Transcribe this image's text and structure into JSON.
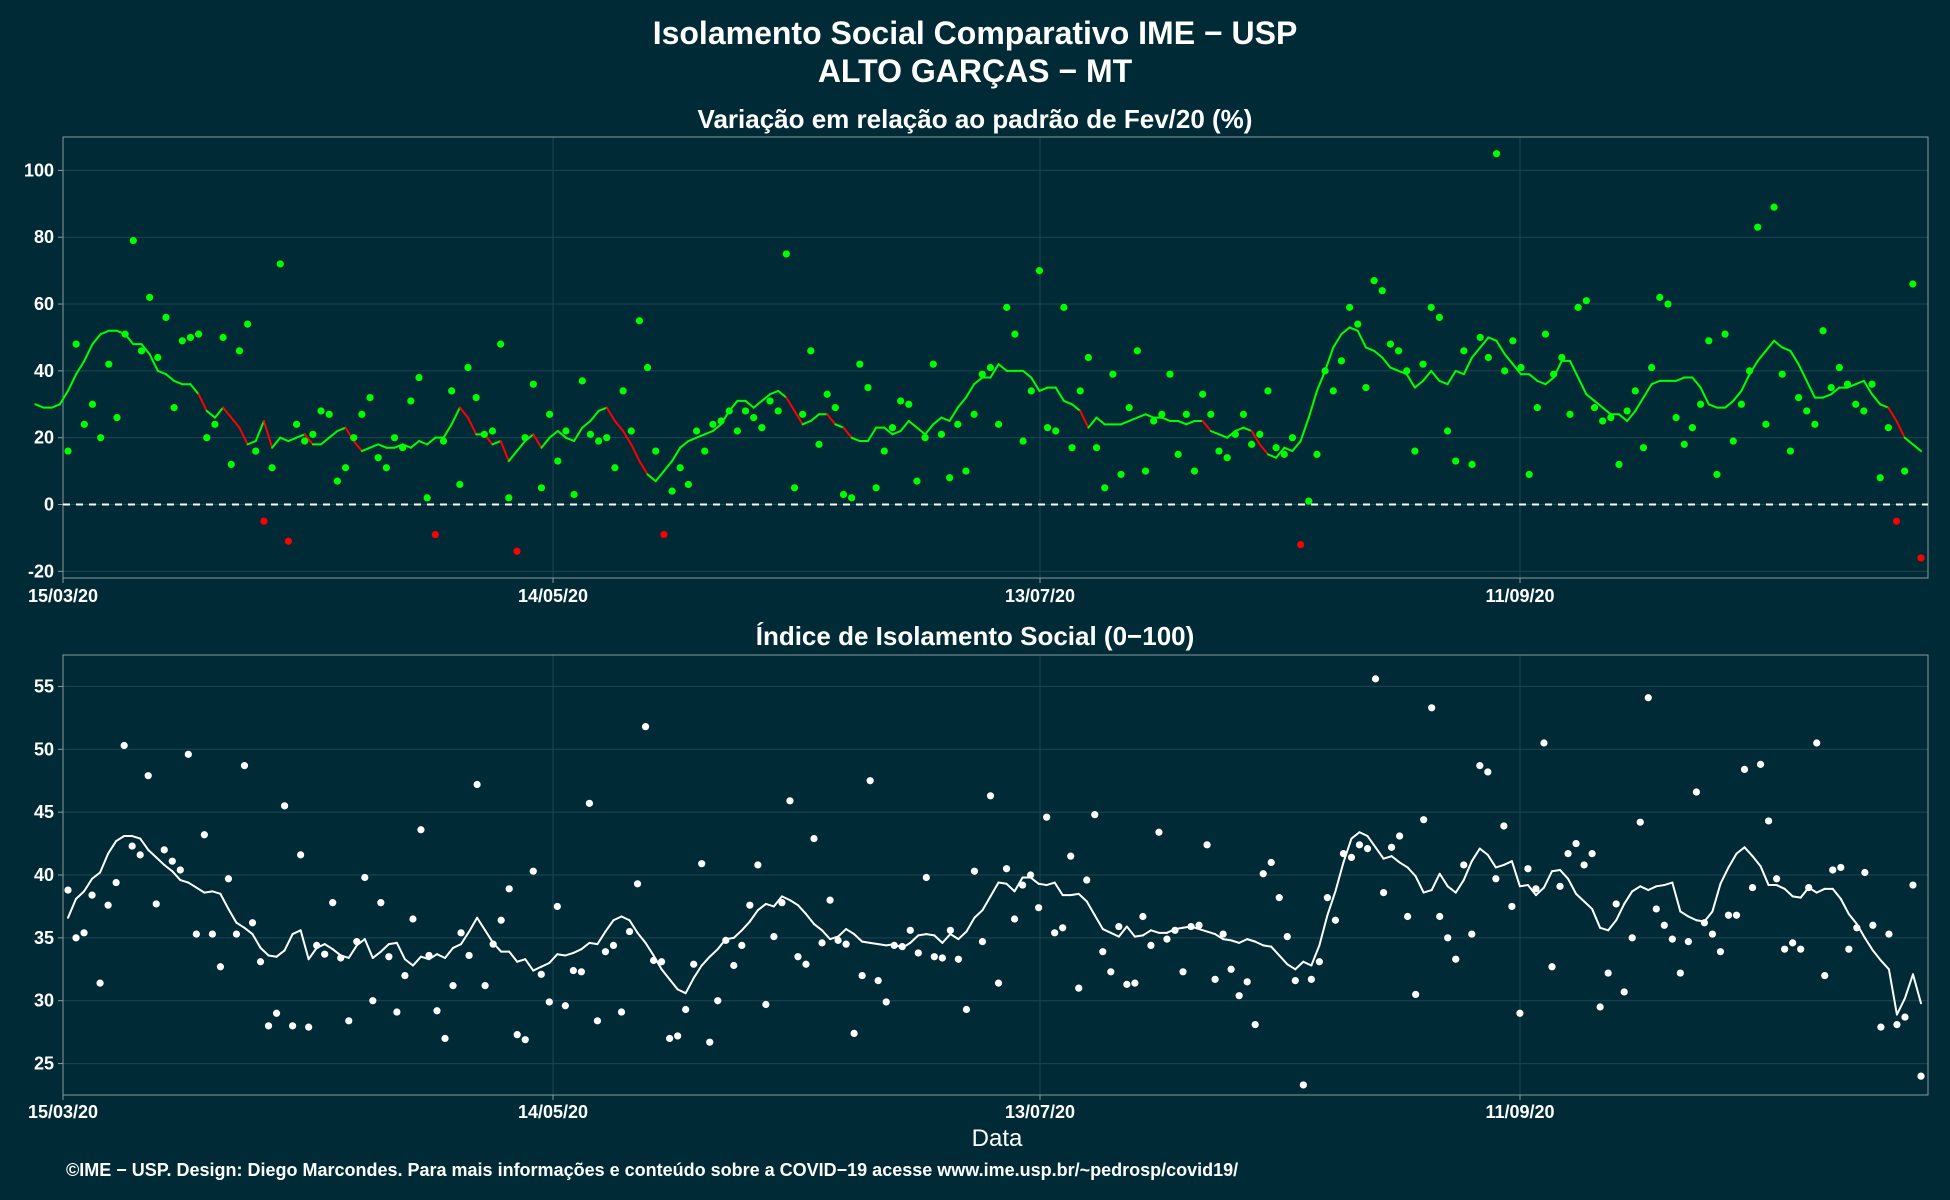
{
  "header": {
    "title_line1": "Isolamento Social Comparativo IME − USP",
    "title_line2": "ALTO GARÇAS − MT"
  },
  "footer": {
    "x_axis_label": "Data",
    "credits": "©IME − USP. Design: Diego Marcondes. Para mais informações e conteúdo sobre a COVID−19 acesse www.ime.usp.br/~pedrosp/covid19/"
  },
  "colors": {
    "background": "#002b36",
    "panel_border": "#8a9aa0",
    "grid": "#1f4552",
    "positive": "#00ff00",
    "negative": "#ff0000",
    "index": "#ffffff"
  },
  "chart_data": [
    {
      "type": "scatter",
      "title": "Variação em relação ao padrão de Fev/20 (%)",
      "xlabel": "",
      "ylabel": "",
      "x_start": "2020-03-15",
      "x_end": "2020-10-29",
      "x_ticks": [
        "15/03/20",
        "14/05/20",
        "13/07/20",
        "11/09/20"
      ],
      "ylim": [
        -22,
        110
      ],
      "y_ticks": [
        -20,
        0,
        20,
        40,
        60,
        80,
        100
      ],
      "reference_line": 0,
      "series": [
        {
          "values": [
            16,
            48,
            24,
            30,
            20,
            42,
            26,
            51,
            79,
            46,
            62,
            44,
            56,
            29,
            49,
            50,
            51,
            20,
            24,
            50,
            12,
            46,
            54,
            16,
            -5,
            11,
            72,
            -11,
            24,
            19,
            21,
            28,
            27,
            7,
            11,
            20,
            27,
            32,
            14,
            11,
            20,
            17,
            31,
            38,
            2,
            -9,
            19,
            34,
            6,
            41,
            32,
            21,
            22,
            48,
            2,
            -14,
            20,
            36,
            5,
            27,
            13,
            22,
            3,
            37,
            21,
            19,
            20,
            11,
            34,
            22,
            55,
            41,
            16,
            -9,
            4,
            11,
            6,
            22,
            16,
            24,
            25,
            28,
            22,
            28,
            26,
            23,
            31,
            28,
            75,
            5,
            27,
            46,
            18,
            33,
            29,
            3,
            2,
            42,
            35,
            5,
            16,
            23,
            31,
            30,
            7,
            20,
            42,
            21,
            8,
            24,
            10,
            27,
            39,
            41,
            24,
            59,
            51,
            19,
            34,
            70,
            23,
            22,
            59,
            17,
            34,
            44,
            17,
            5,
            39,
            9,
            29,
            46,
            10,
            25,
            27,
            39,
            15,
            27,
            10,
            33,
            27,
            16,
            14,
            21,
            27,
            18,
            21,
            34,
            17,
            15,
            20,
            -12,
            1,
            15,
            40,
            34,
            43,
            59,
            54,
            35,
            67,
            64,
            48,
            46,
            40,
            16,
            42,
            59,
            56,
            22,
            13,
            46,
            12,
            50,
            44,
            105,
            40,
            49,
            41,
            9,
            29,
            51,
            39,
            44,
            27,
            59,
            61,
            29,
            25,
            26,
            12,
            28,
            34,
            17,
            41,
            62,
            60,
            26,
            18,
            23,
            30,
            49,
            9,
            51,
            19,
            30,
            40,
            83,
            24,
            89,
            39,
            16,
            32,
            28,
            24,
            52,
            35,
            41,
            36,
            30,
            28,
            36,
            8,
            23,
            -5,
            10,
            66,
            -16
          ],
          "moving_average": [
            30,
            29,
            29,
            30,
            34,
            39,
            43,
            48,
            51,
            52,
            52,
            51,
            48,
            48,
            45,
            40,
            39,
            37,
            36,
            36,
            33,
            28,
            26,
            29,
            26,
            23,
            18,
            19,
            25,
            17,
            20,
            19,
            20,
            21,
            18,
            18,
            20,
            22,
            23,
            19,
            16,
            17,
            18,
            17,
            17,
            18,
            17,
            19,
            18,
            20,
            20,
            24,
            29,
            26,
            21,
            21,
            18,
            19,
            13,
            16,
            19,
            21,
            17,
            20,
            22,
            20,
            19,
            23,
            25,
            28,
            29,
            25,
            22,
            18,
            13,
            9,
            7,
            10,
            13,
            17,
            19,
            20,
            21,
            22,
            24,
            28,
            31,
            31,
            29,
            31,
            33,
            34,
            32,
            28,
            24,
            25,
            27,
            27,
            24,
            23,
            20,
            19,
            19,
            23,
            23,
            21,
            22,
            25,
            23,
            21,
            24,
            26,
            25,
            29,
            32,
            36,
            38,
            38,
            42,
            40,
            40,
            40,
            38,
            34,
            35,
            35,
            31,
            30,
            28,
            23,
            26,
            24,
            24,
            24,
            25,
            26,
            27,
            26,
            26,
            25,
            25,
            24,
            25,
            25,
            22,
            21,
            20,
            22,
            23,
            22,
            18,
            15,
            14,
            17,
            16,
            19,
            26,
            34,
            40,
            47,
            51,
            53,
            52,
            47,
            46,
            44,
            41,
            40,
            39,
            35,
            37,
            40,
            37,
            36,
            40,
            39,
            44,
            47,
            50,
            49,
            45,
            42,
            39,
            39,
            37,
            36,
            38,
            43,
            43,
            38,
            33,
            31,
            29,
            27,
            27,
            25,
            28,
            32,
            36,
            37,
            37,
            37,
            38,
            38,
            35,
            30,
            29,
            29,
            31,
            34,
            39,
            43,
            46,
            49,
            47,
            46,
            42,
            37,
            32,
            32,
            33,
            35,
            35,
            36,
            37,
            33,
            30,
            29,
            25,
            20,
            18,
            16
          ]
        }
      ]
    },
    {
      "type": "scatter",
      "title": "Índice de Isolamento Social (0−100)",
      "xlabel": "Data",
      "ylabel": "",
      "x_start": "2020-03-15",
      "x_end": "2020-10-29",
      "x_ticks": [
        "15/03/20",
        "14/05/20",
        "13/07/20",
        "11/09/20"
      ],
      "ylim": [
        22.5,
        57.5
      ],
      "y_ticks": [
        25,
        30,
        35,
        40,
        45,
        50,
        55
      ],
      "series": [
        {
          "values": [
            38.8,
            35,
            35.4,
            38.4,
            31.4,
            37.6,
            39.4,
            50.3,
            42.3,
            41.6,
            47.9,
            37.7,
            42,
            41.1,
            40.4,
            49.6,
            35.3,
            43.2,
            35.3,
            32.7,
            39.7,
            35.3,
            48.7,
            36.2,
            33.1,
            28,
            29,
            45.5,
            28,
            41.6,
            27.9,
            34.4,
            33.7,
            37.8,
            33.4,
            28.4,
            34.7,
            39.8,
            30,
            37.8,
            33.5,
            29.1,
            32,
            36.5,
            43.6,
            33.6,
            29.2,
            27,
            31.2,
            35.4,
            33.6,
            47.2,
            31.2,
            34.5,
            36.4,
            38.9,
            27.3,
            26.9,
            40.3,
            32.1,
            29.9,
            37.5,
            29.6,
            32.4,
            32.3,
            45.7,
            28.4,
            33.9,
            34.4,
            29.1,
            35.5,
            39.3,
            51.8,
            33.2,
            33.1,
            27,
            27.2,
            29.3,
            32.9,
            40.9,
            26.7,
            30,
            34.8,
            32.8,
            34.4,
            37.6,
            40.8,
            29.7,
            35.1,
            37.8,
            45.9,
            33.5,
            32.9,
            42.9,
            34.6,
            38,
            34.8,
            34.5,
            27.4,
            32,
            47.5,
            31.6,
            29.9,
            34.4,
            34.3,
            35.6,
            33.8,
            39.8,
            33.5,
            33.4,
            35.6,
            33.3,
            29.3,
            40.3,
            34.7,
            46.3,
            31.4,
            40.5,
            36.5,
            39.2,
            40,
            37.4,
            44.6,
            35.4,
            35.8,
            41.5,
            31,
            39.6,
            44.8,
            33.9,
            32.3,
            35.9,
            31.3,
            31.4,
            36.7,
            34.4,
            43.4,
            34.9,
            35.6,
            32.3,
            35.9,
            36,
            42.4,
            31.7,
            35.3,
            32.5,
            30.4,
            31.5,
            28.1,
            40.1,
            41,
            38.2,
            35.1,
            31.6,
            23.3,
            31.7,
            33.1,
            38.2,
            36.4,
            41.7,
            41.4,
            42.4,
            42.1,
            55.6,
            38.6,
            42.2,
            43.1,
            36.7,
            30.5,
            44.4,
            53.3,
            36.7,
            35,
            33.3,
            40.8,
            35.3,
            48.7,
            48.2,
            39.7,
            43.9,
            37.5,
            29,
            40.5,
            38.9,
            50.5,
            32.7,
            39.1,
            41.7,
            42.5,
            40.8,
            41.7,
            29.5,
            32.2,
            37.7,
            30.7,
            35,
            44.2,
            54.1,
            37.3,
            36,
            34.9,
            32.2,
            34.7,
            46.6,
            36.2,
            35.3,
            33.9,
            36.8,
            36.8,
            48.4,
            39,
            48.8,
            44.3,
            39.7,
            34.1,
            34.6,
            34.1,
            39,
            50.5,
            32,
            40.4,
            40.6,
            34.1,
            35.8,
            40.2,
            36,
            27.9,
            35.3,
            28.1,
            28.7,
            39.2,
            24
          ]
        },
        {
          "moving_average": [
            36.6,
            38.1,
            38.7,
            39.7,
            40.2,
            41.7,
            42.7,
            43.1,
            43.1,
            42.9,
            42,
            41.4,
            40.8,
            40.3,
            39.6,
            39.4,
            39,
            38.6,
            38.7,
            38.5,
            37.3,
            36.2,
            35.8,
            35.3,
            34.2,
            33.6,
            33.5,
            34,
            35.3,
            35.6,
            33.3,
            34.2,
            34.5,
            34.1,
            33.6,
            33.4,
            34.4,
            34.9,
            33.4,
            33.9,
            34.5,
            34.6,
            33.3,
            32.8,
            33.5,
            33.3,
            33.7,
            33.4,
            34.2,
            34.5,
            35.5,
            36.6,
            35.6,
            34.6,
            33.9,
            33.9,
            33.1,
            33.3,
            32.4,
            32.7,
            33,
            33.7,
            33.6,
            33.8,
            34.1,
            34.6,
            34.5,
            35.5,
            36.4,
            36.7,
            36.4,
            35.4,
            34.6,
            33.6,
            32.5,
            31.7,
            30.9,
            30.6,
            31.8,
            32.8,
            33.5,
            34.1,
            34.9,
            35,
            35.6,
            36.3,
            37.2,
            37.7,
            37.5,
            38.3,
            38,
            37.6,
            36.9,
            36.1,
            35.6,
            34.9,
            35.1,
            35.7,
            35.3,
            34.7,
            34.6,
            34.5,
            34.4,
            34.5,
            34.2,
            34.6,
            35.2,
            35.3,
            35.2,
            34.6,
            35.3,
            34.9,
            35.5,
            36.6,
            37.2,
            38.3,
            39.4,
            39.3,
            38.7,
            39.8,
            39.8,
            39.3,
            39.2,
            39.4,
            38.4,
            38.4,
            38.5,
            37.9,
            36.8,
            35.7,
            35.4,
            35.1,
            35.9,
            35.1,
            35.2,
            35.6,
            35.4,
            35.4,
            35.7,
            35.8,
            35.9,
            35.7,
            35.5,
            35.3,
            34.9,
            34.8,
            34.6,
            34.9,
            34.7,
            34.4,
            34.3,
            33.6,
            32.9,
            32.5,
            33.1,
            32.8,
            34.4,
            36.8,
            38.7,
            41,
            42.9,
            43.4,
            43.1,
            42.2,
            41.3,
            41.5,
            41,
            40.6,
            39.9,
            38.6,
            38.8,
            40.1,
            39.1,
            38.6,
            39.6,
            41.1,
            42.1,
            41.6,
            40.6,
            40.8,
            41.1,
            39.1,
            39.2,
            38.4,
            39,
            40.3,
            40.4,
            39.7,
            38.5,
            37.9,
            37.3,
            35.8,
            35.6,
            36.4,
            37.7,
            38.7,
            39.1,
            38.8,
            39.1,
            39.2,
            39.4,
            37.1,
            36.7,
            36.4,
            36.3,
            37.1,
            39.3,
            40.6,
            41.7,
            42.2,
            41.5,
            40.7,
            39.2,
            39.2,
            38.9,
            38.3,
            38.2,
            39,
            38.6,
            38.9,
            38.9,
            38.1,
            36.9,
            36.1,
            35,
            34,
            33.2,
            32.5,
            28.9,
            30.2,
            32.1,
            29.8
          ],
          "is_smoothed": true
        }
      ]
    }
  ]
}
